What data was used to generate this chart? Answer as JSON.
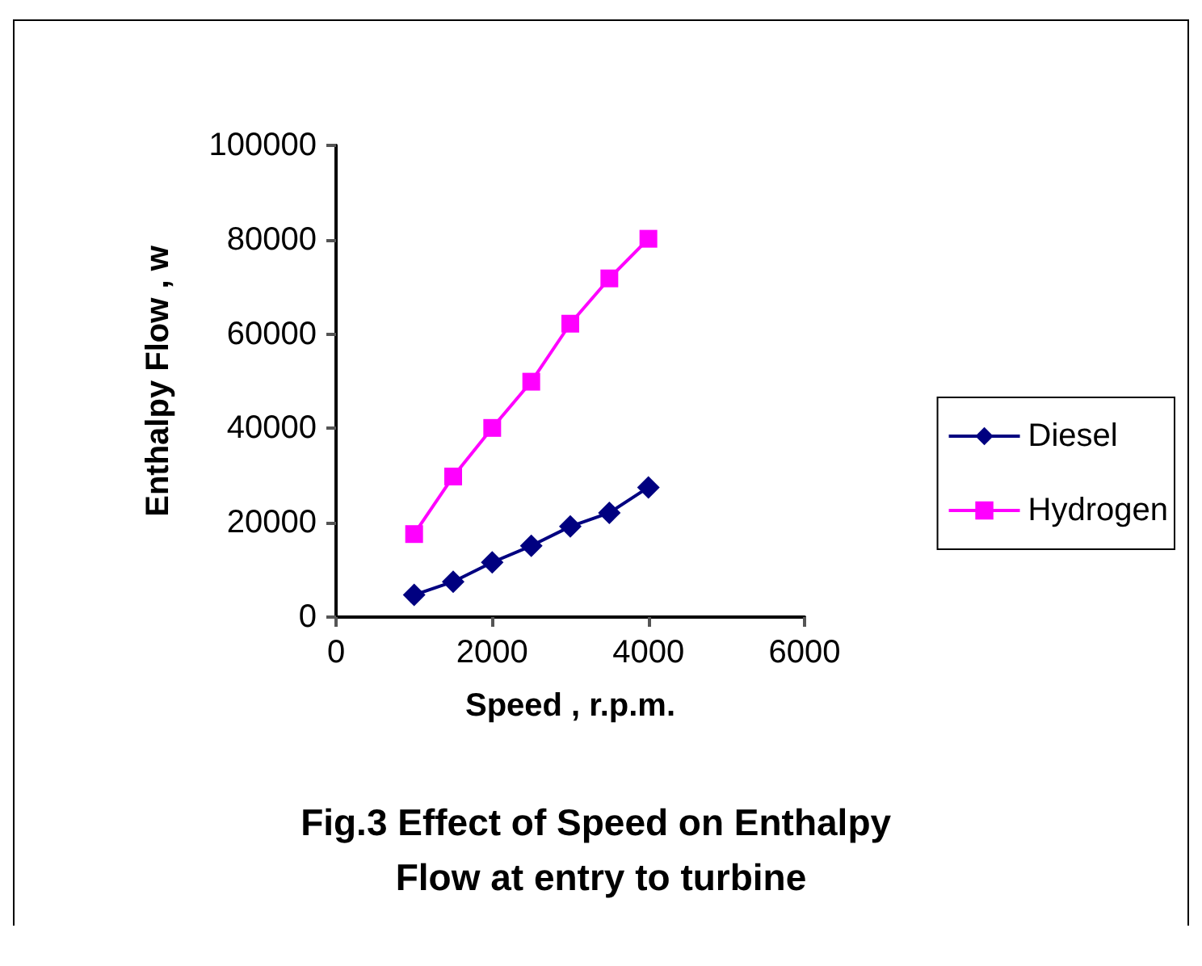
{
  "chart_data": {
    "type": "line",
    "title": "Fig.3 Effect of Speed on Enthalpy Flow at entry to turbine",
    "xlabel": "Speed , r.p.m.",
    "ylabel": "Enthalpy Flow , w",
    "x": [
      1000,
      1500,
      2000,
      2500,
      3000,
      3500,
      4000
    ],
    "series": [
      {
        "name": "Diesel",
        "color": "#000080",
        "marker": "diamond",
        "values": [
          4700,
          7500,
          11600,
          15100,
          19200,
          22100,
          27500
        ]
      },
      {
        "name": "Hydrogen",
        "color": "#ff00ff",
        "marker": "square",
        "values": [
          17600,
          29800,
          40100,
          49900,
          62200,
          71800,
          80200
        ]
      }
    ],
    "xlim": [
      0,
      6000
    ],
    "xticks": [
      0,
      2000,
      4000,
      6000
    ],
    "ylim": [
      0,
      100000
    ],
    "yticks": [
      0,
      20000,
      40000,
      60000,
      80000,
      100000
    ],
    "grid": false,
    "legend": "right"
  }
}
